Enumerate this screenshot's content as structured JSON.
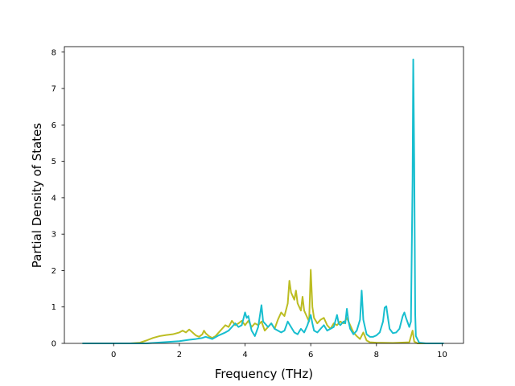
{
  "chart_data": {
    "type": "line",
    "xlabel": "Frequency (THz)",
    "ylabel": "Partial Density of States",
    "xlim": [
      -1.5,
      10.65
    ],
    "ylim": [
      0,
      8.15
    ],
    "xticks": [
      0,
      2,
      4,
      6,
      8,
      10
    ],
    "yticks": [
      0,
      1,
      2,
      3,
      4,
      5,
      6,
      7,
      8
    ],
    "grid": false,
    "series": [
      {
        "color": "#bcbd22",
        "points": [
          [
            -0.95,
            0
          ],
          [
            0.5,
            0
          ],
          [
            0.8,
            0.02
          ],
          [
            1.0,
            0.08
          ],
          [
            1.2,
            0.15
          ],
          [
            1.4,
            0.2
          ],
          [
            1.6,
            0.23
          ],
          [
            1.8,
            0.25
          ],
          [
            2.0,
            0.3
          ],
          [
            2.1,
            0.35
          ],
          [
            2.2,
            0.3
          ],
          [
            2.3,
            0.38
          ],
          [
            2.4,
            0.3
          ],
          [
            2.5,
            0.22
          ],
          [
            2.6,
            0.18
          ],
          [
            2.7,
            0.25
          ],
          [
            2.75,
            0.35
          ],
          [
            2.8,
            0.28
          ],
          [
            2.9,
            0.2
          ],
          [
            3.0,
            0.15
          ],
          [
            3.1,
            0.2
          ],
          [
            3.2,
            0.3
          ],
          [
            3.3,
            0.4
          ],
          [
            3.4,
            0.5
          ],
          [
            3.5,
            0.45
          ],
          [
            3.6,
            0.62
          ],
          [
            3.7,
            0.5
          ],
          [
            3.8,
            0.55
          ],
          [
            3.9,
            0.62
          ],
          [
            4.0,
            0.5
          ],
          [
            4.1,
            0.62
          ],
          [
            4.2,
            0.45
          ],
          [
            4.3,
            0.55
          ],
          [
            4.4,
            0.5
          ],
          [
            4.5,
            0.6
          ],
          [
            4.6,
            0.35
          ],
          [
            4.7,
            0.45
          ],
          [
            4.8,
            0.55
          ],
          [
            4.9,
            0.4
          ],
          [
            5.0,
            0.65
          ],
          [
            5.1,
            0.85
          ],
          [
            5.2,
            0.75
          ],
          [
            5.3,
            1.1
          ],
          [
            5.35,
            1.72
          ],
          [
            5.4,
            1.4
          ],
          [
            5.5,
            1.2
          ],
          [
            5.55,
            1.45
          ],
          [
            5.6,
            1.1
          ],
          [
            5.7,
            0.9
          ],
          [
            5.75,
            1.28
          ],
          [
            5.8,
            0.9
          ],
          [
            5.9,
            0.7
          ],
          [
            5.95,
            0.6
          ],
          [
            6.0,
            2.02
          ],
          [
            6.05,
            1.0
          ],
          [
            6.1,
            0.7
          ],
          [
            6.2,
            0.55
          ],
          [
            6.3,
            0.65
          ],
          [
            6.4,
            0.7
          ],
          [
            6.5,
            0.5
          ],
          [
            6.6,
            0.4
          ],
          [
            6.7,
            0.55
          ],
          [
            6.8,
            0.5
          ],
          [
            6.9,
            0.6
          ],
          [
            7.0,
            0.55
          ],
          [
            7.1,
            0.7
          ],
          [
            7.2,
            0.5
          ],
          [
            7.3,
            0.3
          ],
          [
            7.4,
            0.2
          ],
          [
            7.5,
            0.12
          ],
          [
            7.6,
            0.3
          ],
          [
            7.7,
            0.08
          ],
          [
            7.8,
            0.03
          ],
          [
            8.0,
            0.02
          ],
          [
            8.5,
            0.01
          ],
          [
            9.0,
            0.03
          ],
          [
            9.1,
            0.35
          ],
          [
            9.15,
            0.05
          ],
          [
            9.25,
            0
          ],
          [
            10.05,
            0
          ]
        ]
      },
      {
        "color": "#17becf",
        "points": [
          [
            -0.95,
            0
          ],
          [
            1.0,
            0
          ],
          [
            1.5,
            0.03
          ],
          [
            2.0,
            0.06
          ],
          [
            2.3,
            0.1
          ],
          [
            2.5,
            0.12
          ],
          [
            2.7,
            0.15
          ],
          [
            2.8,
            0.18
          ],
          [
            3.0,
            0.12
          ],
          [
            3.2,
            0.22
          ],
          [
            3.4,
            0.3
          ],
          [
            3.5,
            0.35
          ],
          [
            3.6,
            0.45
          ],
          [
            3.7,
            0.55
          ],
          [
            3.8,
            0.45
          ],
          [
            3.9,
            0.5
          ],
          [
            4.0,
            0.85
          ],
          [
            4.05,
            0.7
          ],
          [
            4.1,
            0.75
          ],
          [
            4.2,
            0.35
          ],
          [
            4.3,
            0.2
          ],
          [
            4.4,
            0.45
          ],
          [
            4.5,
            1.05
          ],
          [
            4.55,
            0.6
          ],
          [
            4.6,
            0.55
          ],
          [
            4.7,
            0.45
          ],
          [
            4.8,
            0.55
          ],
          [
            4.9,
            0.4
          ],
          [
            5.0,
            0.35
          ],
          [
            5.1,
            0.3
          ],
          [
            5.2,
            0.35
          ],
          [
            5.3,
            0.6
          ],
          [
            5.4,
            0.45
          ],
          [
            5.5,
            0.3
          ],
          [
            5.6,
            0.25
          ],
          [
            5.7,
            0.4
          ],
          [
            5.8,
            0.3
          ],
          [
            5.9,
            0.5
          ],
          [
            6.0,
            0.78
          ],
          [
            6.05,
            0.55
          ],
          [
            6.1,
            0.35
          ],
          [
            6.2,
            0.3
          ],
          [
            6.3,
            0.4
          ],
          [
            6.4,
            0.5
          ],
          [
            6.5,
            0.35
          ],
          [
            6.6,
            0.4
          ],
          [
            6.7,
            0.45
          ],
          [
            6.8,
            0.78
          ],
          [
            6.85,
            0.55
          ],
          [
            6.9,
            0.5
          ],
          [
            7.0,
            0.6
          ],
          [
            7.05,
            0.55
          ],
          [
            7.1,
            0.95
          ],
          [
            7.15,
            0.6
          ],
          [
            7.2,
            0.4
          ],
          [
            7.3,
            0.25
          ],
          [
            7.4,
            0.35
          ],
          [
            7.5,
            0.65
          ],
          [
            7.55,
            1.45
          ],
          [
            7.6,
            0.65
          ],
          [
            7.7,
            0.25
          ],
          [
            7.8,
            0.18
          ],
          [
            7.9,
            0.18
          ],
          [
            8.0,
            0.22
          ],
          [
            8.1,
            0.3
          ],
          [
            8.2,
            0.6
          ],
          [
            8.25,
            0.98
          ],
          [
            8.3,
            1.02
          ],
          [
            8.35,
            0.7
          ],
          [
            8.4,
            0.4
          ],
          [
            8.5,
            0.28
          ],
          [
            8.6,
            0.3
          ],
          [
            8.7,
            0.4
          ],
          [
            8.8,
            0.75
          ],
          [
            8.85,
            0.85
          ],
          [
            8.9,
            0.7
          ],
          [
            9.0,
            0.45
          ],
          [
            9.05,
            0.6
          ],
          [
            9.1,
            4.5
          ],
          [
            9.12,
            7.8
          ],
          [
            9.15,
            5.0
          ],
          [
            9.18,
            0.8
          ],
          [
            9.2,
            0.2
          ],
          [
            9.3,
            0.02
          ],
          [
            9.5,
            0
          ],
          [
            10.05,
            0
          ]
        ]
      }
    ]
  }
}
